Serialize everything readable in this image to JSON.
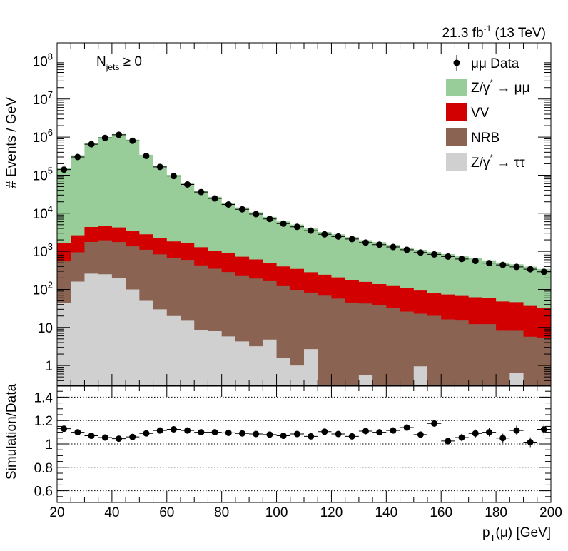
{
  "header": {
    "lumi_text": "21.3 fb",
    "lumi_sup": "-1",
    "lumi_suffix": " (13 TeV)"
  },
  "annotation": {
    "text": "N",
    "sub": "jets",
    "suffix": " ≥ 0"
  },
  "chart_data": [
    {
      "type": "area",
      "title": "",
      "ylabel": "# Events / GeV",
      "xlim": [
        20,
        200
      ],
      "ylim": [
        0.3,
        300000000
      ],
      "yscale": "log",
      "bin_edges": [
        20,
        25,
        30,
        35,
        40,
        45,
        50,
        55,
        60,
        65,
        70,
        75,
        80,
        85,
        90,
        95,
        100,
        105,
        110,
        115,
        120,
        125,
        130,
        135,
        140,
        145,
        150,
        155,
        160,
        165,
        170,
        175,
        180,
        185,
        190,
        195,
        200
      ],
      "bin_centers": [
        22.5,
        27.5,
        32.5,
        37.5,
        42.5,
        47.5,
        52.5,
        57.5,
        62.5,
        67.5,
        72.5,
        77.5,
        82.5,
        87.5,
        92.5,
        97.5,
        102.5,
        107.5,
        112.5,
        117.5,
        122.5,
        127.5,
        132.5,
        137.5,
        142.5,
        147.5,
        152.5,
        157.5,
        162.5,
        167.5,
        172.5,
        177.5,
        182.5,
        187.5,
        192.5,
        197.5
      ],
      "y_ticks": [
        {
          "value": 1,
          "label": "1"
        },
        {
          "value": 10,
          "label": "10"
        },
        {
          "value": 100,
          "label": "10",
          "sup": "2"
        },
        {
          "value": 1000,
          "label": "10",
          "sup": "3"
        },
        {
          "value": 10000,
          "label": "10",
          "sup": "4"
        },
        {
          "value": 100000,
          "label": "10",
          "sup": "5"
        },
        {
          "value": 1000000,
          "label": "10",
          "sup": "6"
        },
        {
          "value": 10000000,
          "label": "10",
          "sup": "7"
        },
        {
          "value": 100000000,
          "label": "10",
          "sup": "8"
        }
      ],
      "legend_position": "top-right",
      "series": [
        {
          "name": "Z/γ* → ττ",
          "color": "#d0d0d0",
          "values": [
            45,
            160,
            260,
            250,
            200,
            100,
            50,
            30,
            20,
            15,
            8.5,
            8,
            5.8,
            4.3,
            3.2,
            4.8,
            1.6,
            1,
            2.7,
            0.2,
            0.2,
            0.2,
            0.55,
            0.2,
            0.2,
            0.2,
            0.95,
            0.2,
            0.28,
            0.2,
            0.2,
            0.2,
            0.2,
            0.65,
            0.2,
            0.2
          ]
        },
        {
          "name": "NRB",
          "color": "#8b6352",
          "values": [
            500,
            780,
            1500,
            1700,
            1550,
            1250,
            1050,
            800,
            650,
            580,
            420,
            340,
            280,
            220,
            190,
            160,
            120,
            95,
            80,
            68,
            57,
            45,
            42,
            38,
            32,
            26,
            22,
            20,
            16,
            15,
            12,
            12,
            8,
            7.5,
            5.5,
            5
          ]
        },
        {
          "name": "VV",
          "color": "#d20000",
          "values": [
            1100,
            1700,
            2600,
            2700,
            2500,
            2100,
            1700,
            1400,
            1150,
            1050,
            850,
            700,
            600,
            500,
            420,
            340,
            280,
            250,
            200,
            175,
            150,
            130,
            115,
            100,
            90,
            80,
            70,
            62,
            57,
            52,
            50,
            47,
            40,
            38,
            31,
            28
          ]
        },
        {
          "name": "Z/γ* → μμ",
          "color": "#98cc98",
          "values": [
            150000,
            330000,
            700000,
            1000000,
            1200000,
            850000,
            340000,
            175000,
            100000,
            60000,
            38000,
            26000,
            18000,
            13500,
            10000,
            7500,
            5700,
            4700,
            3700,
            3000,
            2600,
            2200,
            1800,
            1600,
            1350,
            1150,
            1000,
            880,
            770,
            670,
            590,
            520,
            460,
            410,
            360,
            310
          ]
        }
      ],
      "data_points": {
        "name": "μμ Data",
        "color": "#000000",
        "values": [
          140000,
          300000,
          650000,
          950000,
          1150000,
          800000,
          320000,
          165000,
          95000,
          57000,
          36000,
          24500,
          17000,
          12700,
          9500,
          7100,
          5350,
          4400,
          3500,
          2800,
          2450,
          2100,
          1700,
          1500,
          1300,
          1100,
          930,
          830,
          730,
          630,
          560,
          490,
          440,
          390,
          340,
          290
        ]
      },
      "legend": [
        {
          "label": "μμ Data",
          "kind": "marker"
        },
        {
          "label": "Z/γ",
          "sup": "*",
          "tail": " → μμ",
          "kind": "box",
          "color": "#98cc98"
        },
        {
          "label": "VV",
          "kind": "box",
          "color": "#d20000"
        },
        {
          "label": "NRB",
          "kind": "box",
          "color": "#8b6352"
        },
        {
          "label": "Z/γ",
          "sup": "*",
          "tail": " → ττ",
          "kind": "box",
          "color": "#d0d0d0"
        }
      ]
    },
    {
      "type": "scatter",
      "title": "",
      "xlabel": "p",
      "xlabel_sub": "T",
      "xlabel_suffix": "(μ) [GeV]",
      "ylabel": "Simulation/Data",
      "xlim": [
        20,
        200
      ],
      "ylim": [
        0.5,
        1.5
      ],
      "y_ticks": [
        0.6,
        0.8,
        1,
        1.2,
        1.4
      ],
      "y_tick_labels": [
        "0.6",
        "0.8",
        "1",
        "1.2",
        "1.4"
      ],
      "x_ticks": [
        20,
        40,
        60,
        80,
        100,
        120,
        140,
        160,
        180,
        200
      ],
      "x_tick_labels": [
        "20",
        "40",
        "60",
        "80",
        "100",
        "120",
        "140",
        "160",
        "180",
        "200"
      ],
      "x": [
        22.5,
        27.5,
        32.5,
        37.5,
        42.5,
        47.5,
        52.5,
        57.5,
        62.5,
        67.5,
        72.5,
        77.5,
        82.5,
        87.5,
        92.5,
        97.5,
        102.5,
        107.5,
        112.5,
        117.5,
        122.5,
        127.5,
        132.5,
        137.5,
        142.5,
        147.5,
        152.5,
        157.5,
        162.5,
        167.5,
        172.5,
        177.5,
        182.5,
        187.5,
        192.5,
        197.5
      ],
      "y": [
        1.13,
        1.1,
        1.07,
        1.055,
        1.045,
        1.06,
        1.09,
        1.115,
        1.125,
        1.115,
        1.1,
        1.1,
        1.095,
        1.09,
        1.085,
        1.08,
        1.07,
        1.085,
        1.065,
        1.105,
        1.085,
        1.065,
        1.11,
        1.1,
        1.115,
        1.14,
        1.08,
        1.175,
        1.025,
        1.055,
        1.09,
        1.1,
        1.05,
        1.115,
        1.015,
        1.125
      ],
      "yerr": [
        0.005,
        0.005,
        0.005,
        0.005,
        0.005,
        0.005,
        0.005,
        0.005,
        0.005,
        0.005,
        0.005,
        0.006,
        0.008,
        0.01,
        0.01,
        0.01,
        0.012,
        0.012,
        0.014,
        0.015,
        0.016,
        0.018,
        0.02,
        0.02,
        0.022,
        0.024,
        0.026,
        0.028,
        0.03,
        0.032,
        0.034,
        0.036,
        0.038,
        0.04,
        0.042,
        0.045
      ],
      "reference_lines": [
        0.6,
        0.8,
        1,
        1.2,
        1.4
      ]
    }
  ]
}
